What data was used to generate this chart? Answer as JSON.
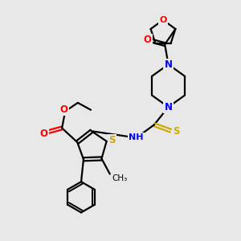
{
  "background_color": "#e8e8e8",
  "bond_color": "#000000",
  "nitrogen_color": "#0000ff",
  "oxygen_color": "#ff0000",
  "sulfur_color": "#ccaa00",
  "h_color": "#888888",
  "line_width": 1.6,
  "figsize": [
    3.0,
    3.0
  ],
  "dpi": 100,
  "xlim": [
    0,
    10
  ],
  "ylim": [
    0,
    10
  ]
}
